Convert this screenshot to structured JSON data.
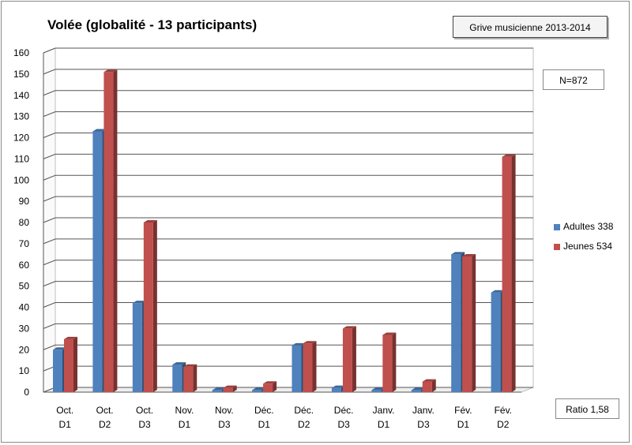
{
  "chart_data": {
    "type": "bar",
    "title": "Volée (globalité - 13 participants)",
    "subtitle": "Grive musicienne 2013-2014",
    "annotations": {
      "total": "N=872",
      "ratio": "Ratio 1,58"
    },
    "categories": [
      [
        "Oct.",
        "D1"
      ],
      [
        "Oct.",
        "D2"
      ],
      [
        "Oct.",
        "D3"
      ],
      [
        "Nov.",
        "D1"
      ],
      [
        "Nov.",
        "D3"
      ],
      [
        "Déc.",
        "D1"
      ],
      [
        "Déc.",
        "D2"
      ],
      [
        "Déc.",
        "D3"
      ],
      [
        "Janv.",
        "D1"
      ],
      [
        "Janv.",
        "D3"
      ],
      [
        "Fév.",
        "D1"
      ],
      [
        "Fév.",
        "D2"
      ]
    ],
    "series": [
      {
        "name": "Adultes 338",
        "color": "#4f81bd",
        "values": [
          20,
          123,
          42,
          13,
          1,
          1,
          22,
          2,
          1,
          1,
          65,
          47
        ]
      },
      {
        "name": "Jeunes 534",
        "color": "#c0504d",
        "values": [
          25,
          151,
          80,
          12,
          2,
          4,
          23,
          30,
          27,
          5,
          64,
          111
        ]
      }
    ],
    "ylim": [
      0,
      160
    ],
    "yticks": [
      "0",
      "10",
      "20",
      "30",
      "40",
      "50",
      "60",
      "70",
      "80",
      "90",
      "100",
      "110",
      "120",
      "130",
      "140",
      "150",
      "160"
    ],
    "xlabel": "",
    "ylabel": "",
    "grid": true,
    "legend_position": "right"
  }
}
